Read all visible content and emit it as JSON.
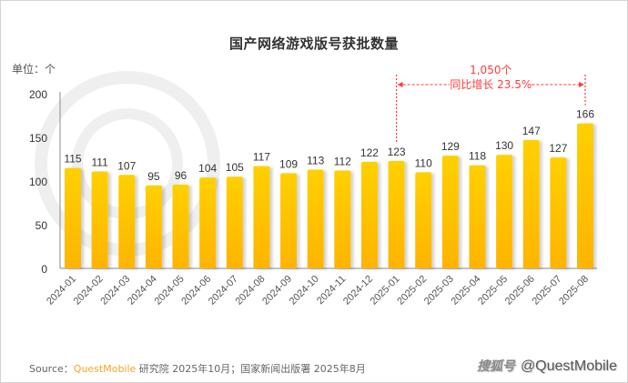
{
  "chart_data": {
    "type": "bar",
    "title": "国产网络游戏版号获批数量",
    "unit_label": "单位：个",
    "xlabel": "",
    "ylabel": "",
    "ylim": [
      0,
      200
    ],
    "yticks": [
      0,
      50,
      100,
      150,
      200
    ],
    "grid": false,
    "categories": [
      "2024-01",
      "2024-02",
      "2024-03",
      "2024-04",
      "2024-05",
      "2024-06",
      "2024-07",
      "2024-08",
      "2024-09",
      "2024-10",
      "2024-11",
      "2024-12",
      "2025-01",
      "2025-02",
      "2025-03",
      "2025-04",
      "2025-05",
      "2025-06",
      "2025-07",
      "2025-08"
    ],
    "values": [
      115,
      111,
      107,
      95,
      96,
      104,
      105,
      117,
      109,
      113,
      112,
      122,
      123,
      110,
      129,
      118,
      130,
      147,
      127,
      166
    ],
    "annotation": {
      "from": "2025-01",
      "to": "2025-08",
      "line1": "1,050个",
      "line2": "同比增长 23.5%",
      "color": "#ff3b3b"
    },
    "bar_colors": {
      "top": "#ffd000",
      "bottom": "#ffb400"
    }
  },
  "footer": {
    "source_prefix": "Source：",
    "source_brand": "QuestMobile",
    "source_rest": " 研究院 2025年10月；国家新闻出版署 2025年8月",
    "watermark_cn": "搜狐号",
    "watermark_en": "@QuestMobile"
  }
}
